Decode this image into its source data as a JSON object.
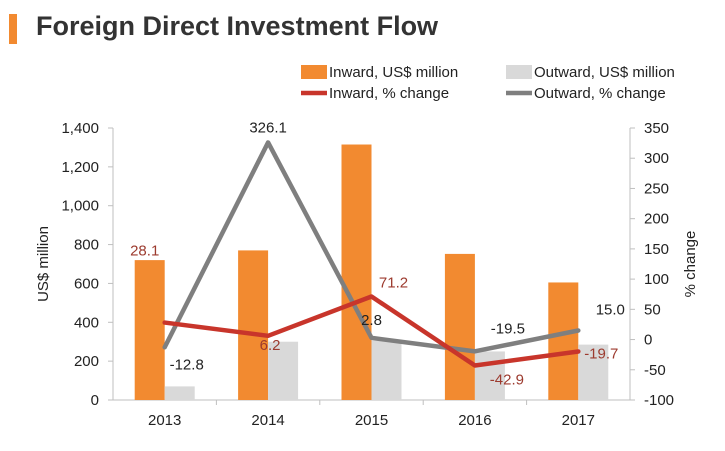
{
  "header": {
    "title": "Foreign Direct Investment Flow"
  },
  "colors": {
    "accent": "#f28a30",
    "inward_bar": "#f28a30",
    "outward_bar": "#d9d9d9",
    "inward_line": "#c8352b",
    "outward_line": "#7f7f7f",
    "label_red": "#9c3a2e",
    "text": "#222222"
  },
  "chart_data": {
    "type": "bar",
    "title": "Foreign Direct Investment Flow",
    "categories": [
      "2013",
      "2014",
      "2015",
      "2016",
      "2017"
    ],
    "ylabel": "US$ million",
    "y2label": "% change",
    "ylim": [
      0,
      1400
    ],
    "y2lim": [
      -100,
      350
    ],
    "yticks": [
      "0",
      "200",
      "400",
      "600",
      "800",
      "1,000",
      "1,200",
      "1,400"
    ],
    "y2ticks": [
      "-100",
      "-50",
      "0",
      "50",
      "100",
      "150",
      "200",
      "250",
      "300",
      "350"
    ],
    "grid": false,
    "legend_position": "top-right",
    "series": [
      {
        "name": "Inward, US$ million",
        "type": "bar",
        "axis": "left",
        "values": [
          720,
          770,
          1315,
          752,
          605
        ]
      },
      {
        "name": "Outward, US$ million",
        "type": "bar",
        "axis": "left",
        "values": [
          70,
          300,
          305,
          250,
          285
        ]
      },
      {
        "name": "Inward, % change",
        "type": "line",
        "axis": "right",
        "values": [
          28.1,
          6.2,
          71.2,
          -42.9,
          -19.7
        ],
        "labels": [
          "28.1",
          "6.2",
          "71.2",
          "-42.9",
          "-19.7"
        ]
      },
      {
        "name": "Outward, % change",
        "type": "line",
        "axis": "right",
        "values": [
          -12.8,
          326.1,
          2.8,
          -19.5,
          15.0
        ],
        "labels": [
          "-12.8",
          "326.1",
          "2.8",
          "-19.5",
          "15.0"
        ]
      }
    ]
  }
}
